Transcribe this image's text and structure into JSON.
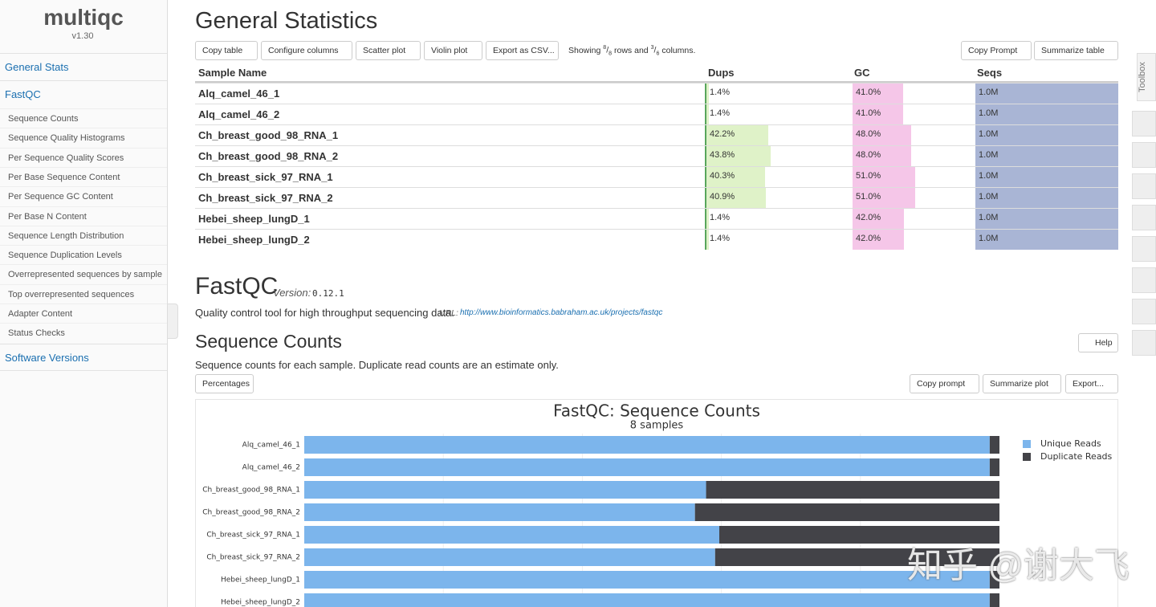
{
  "sidebar": {
    "logo": "multiqc",
    "version": "v1.30",
    "sections": [
      "General Stats",
      "FastQC"
    ],
    "fastqc_items": [
      "Sequence Counts",
      "Sequence Quality Histograms",
      "Per Sequence Quality Scores",
      "Per Base Sequence Content",
      "Per Sequence GC Content",
      "Per Base N Content",
      "Sequence Length Distribution",
      "Sequence Duplication Levels",
      "Overrepresented sequences by sample",
      "Top overrepresented sequences",
      "Adapter Content",
      "Status Checks"
    ],
    "footer_section": "Software Versions"
  },
  "general_stats": {
    "title": "General Statistics",
    "toolbar": [
      "Copy table",
      "Configure columns",
      "Scatter plot",
      "Violin plot",
      "Export as CSV..."
    ],
    "showing": {
      "prefix": "Showing",
      "rows_shown": "8",
      "sep": "/",
      "rows_total": "8",
      "mid": "rows and",
      "cols_shown": "3",
      "cols_total": "6",
      "suffix": "columns."
    },
    "toolbar_right": [
      "Copy Prompt",
      "Summarize table"
    ],
    "columns": [
      {
        "label": "Sample Name"
      },
      {
        "label": "Dups",
        "scale": [
          0,
          100
        ]
      },
      {
        "label": "GC",
        "scale": [
          0,
          100
        ]
      },
      {
        "label": "Seqs",
        "scale": [
          0,
          1.0
        ]
      }
    ],
    "rows": [
      {
        "sample": "Alq_camel_46_1",
        "cells": [
          {
            "value": 1.4,
            "label": "1.4%"
          },
          {
            "value": 41.0,
            "label": "41.0%"
          },
          {
            "value": 1.0,
            "label": "1.0M"
          }
        ]
      },
      {
        "sample": "Alq_camel_46_2",
        "cells": [
          {
            "value": 1.4,
            "label": "1.4%"
          },
          {
            "value": 41.0,
            "label": "41.0%"
          },
          {
            "value": 1.0,
            "label": "1.0M"
          }
        ]
      },
      {
        "sample": "Ch_breast_good_98_RNA_1",
        "cells": [
          {
            "value": 42.2,
            "label": "42.2%"
          },
          {
            "value": 48.0,
            "label": "48.0%"
          },
          {
            "value": 1.0,
            "label": "1.0M"
          }
        ]
      },
      {
        "sample": "Ch_breast_good_98_RNA_2",
        "cells": [
          {
            "value": 43.8,
            "label": "43.8%"
          },
          {
            "value": 48.0,
            "label": "48.0%"
          },
          {
            "value": 1.0,
            "label": "1.0M"
          }
        ]
      },
      {
        "sample": "Ch_breast_sick_97_RNA_1",
        "cells": [
          {
            "value": 40.3,
            "label": "40.3%"
          },
          {
            "value": 51.0,
            "label": "51.0%"
          },
          {
            "value": 1.0,
            "label": "1.0M"
          }
        ]
      },
      {
        "sample": "Ch_breast_sick_97_RNA_2",
        "cells": [
          {
            "value": 40.9,
            "label": "40.9%"
          },
          {
            "value": 51.0,
            "label": "51.0%"
          },
          {
            "value": 1.0,
            "label": "1.0M"
          }
        ]
      },
      {
        "sample": "Hebei_sheep_lungD_1",
        "cells": [
          {
            "value": 1.4,
            "label": "1.4%"
          },
          {
            "value": 42.0,
            "label": "42.0%"
          },
          {
            "value": 1.0,
            "label": "1.0M"
          }
        ]
      },
      {
        "sample": "Hebei_sheep_lungD_2",
        "cells": [
          {
            "value": 1.4,
            "label": "1.4%"
          },
          {
            "value": 42.0,
            "label": "42.0%"
          },
          {
            "value": 1.0,
            "label": "1.0M"
          }
        ]
      }
    ]
  },
  "fastqc": {
    "title": "FastQC",
    "version_label": "Version:",
    "version": "0.12.1",
    "description": "Quality control tool for high throughput sequencing data.",
    "url_label": "URL:",
    "url": "http://www.bioinformatics.babraham.ac.uk/projects/fastqc"
  },
  "sequence_counts": {
    "title": "Sequence Counts",
    "help": "Help",
    "description": "Sequence counts for each sample. Duplicate read counts are an estimate only.",
    "buttons_left": [
      "Percentages"
    ],
    "buttons_right": [
      "Copy prompt",
      "Summarize plot",
      "Export..."
    ]
  },
  "chart_data": {
    "type": "stacked-bar-horizontal",
    "title": "FastQC: Sequence Counts",
    "subtitle": "8 samples",
    "categories": [
      "Alq_camel_46_1",
      "Alq_camel_46_2",
      "Ch_breast_good_98_RNA_1",
      "Ch_breast_good_98_RNA_2",
      "Ch_breast_sick_97_RNA_1",
      "Ch_breast_sick_97_RNA_2",
      "Hebei_sheep_lungD_1",
      "Hebei_sheep_lungD_2"
    ],
    "series": [
      {
        "name": "Unique Reads",
        "color": "#7cb5ec",
        "values": [
          986000,
          986000,
          578000,
          562000,
          597000,
          591000,
          986000,
          986000
        ]
      },
      {
        "name": "Duplicate Reads",
        "color": "#434348",
        "values": [
          14000,
          14000,
          422000,
          438000,
          403000,
          409000,
          14000,
          14000
        ]
      }
    ],
    "xlim": [
      0,
      1000000
    ]
  },
  "toolbox": {
    "label": "Toolbox"
  },
  "watermark": "知乎 @谢大飞"
}
